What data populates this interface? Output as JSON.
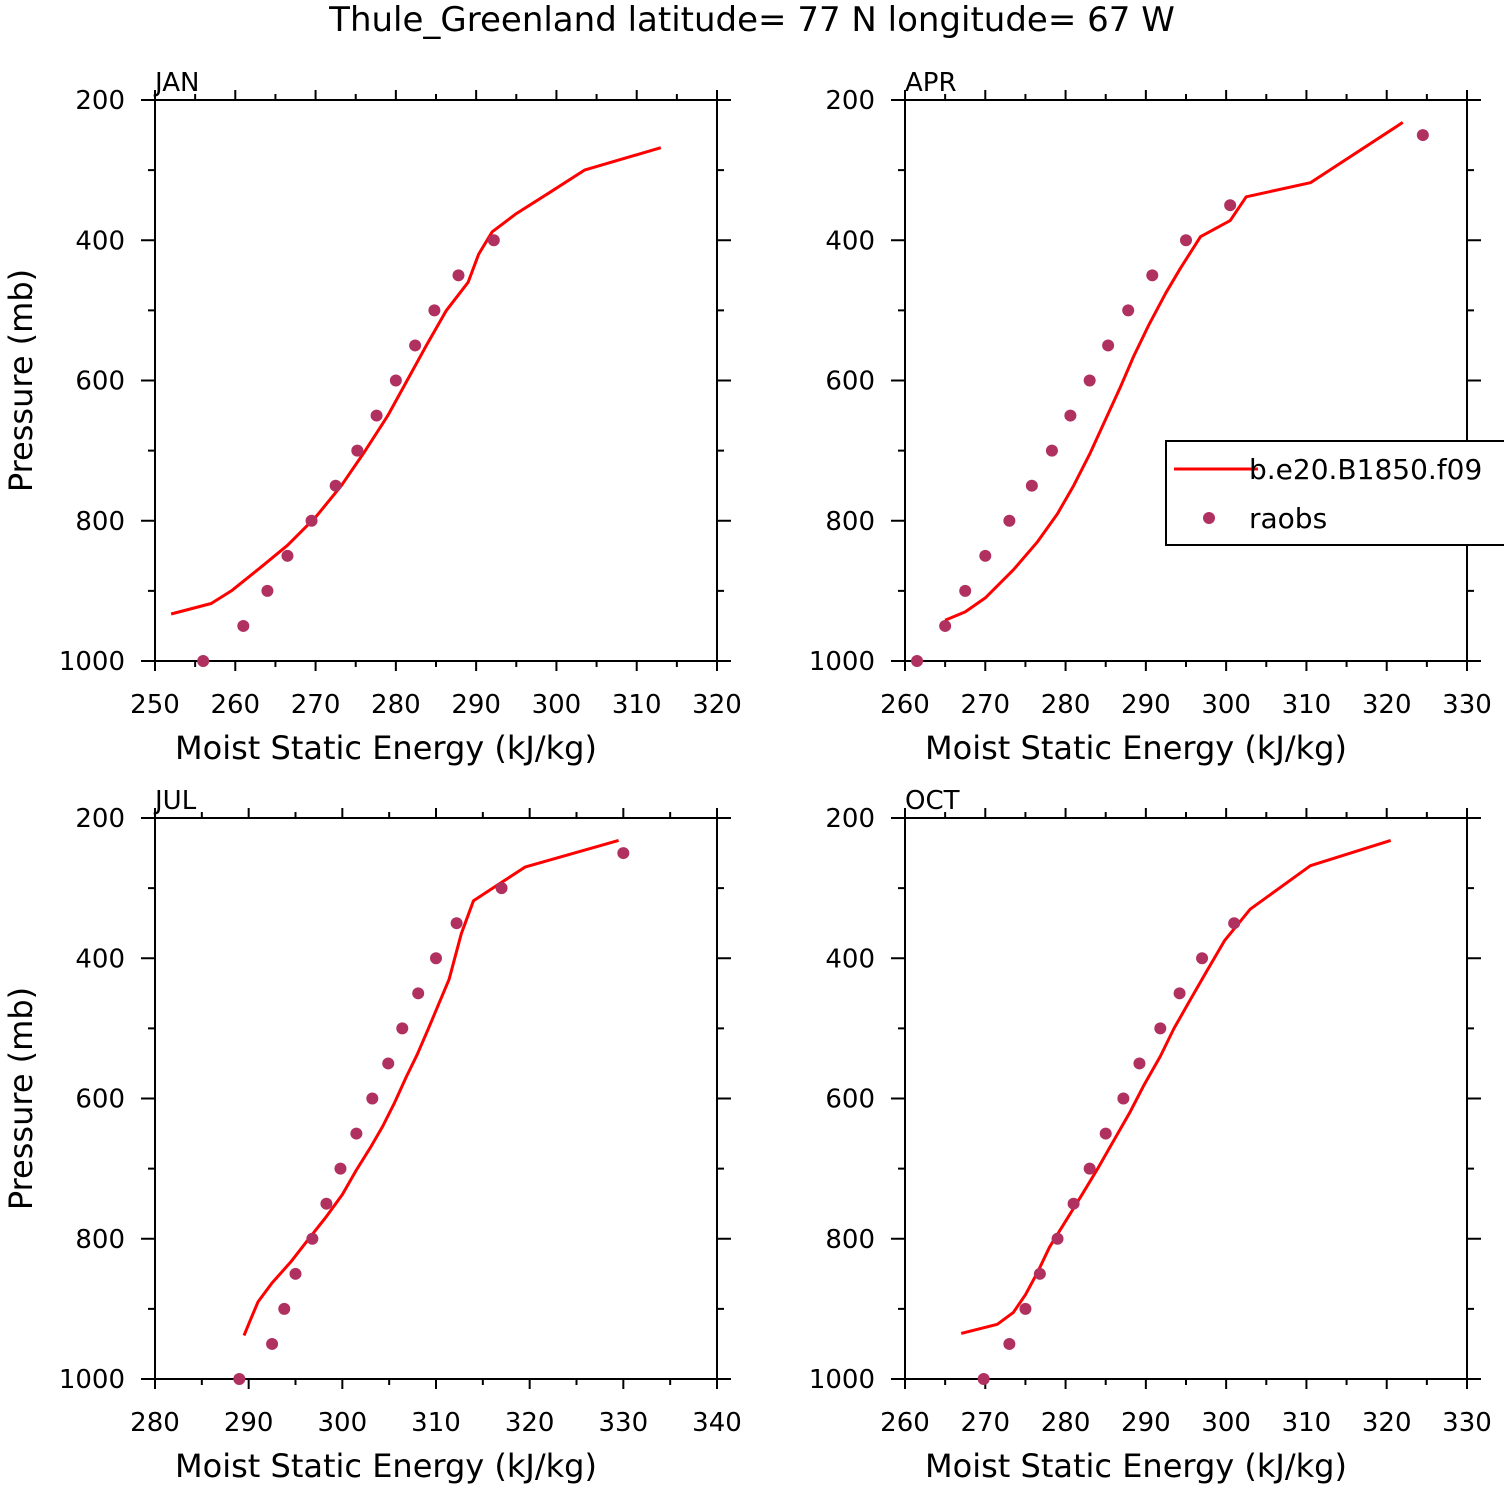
{
  "title": "Thule_Greenland  latitude= 77 N longitude= 67 W",
  "colors": {
    "model_line": "#ff0000",
    "raobs": "#b03060",
    "axis": "#000000"
  },
  "legend": {
    "entries": [
      {
        "label": "b.e20.B1850.f09",
        "kind": "line",
        "color": "#ff0000"
      },
      {
        "label": "raobs",
        "kind": "marker",
        "color": "#b03060"
      }
    ]
  },
  "chart_data": [
    {
      "type": "line",
      "panel": "JAN",
      "xlabel": "Moist Static Energy (kJ/kg)",
      "ylabel": "Pressure (mb)",
      "xlim": [
        250,
        320
      ],
      "ylim": [
        1000,
        200
      ],
      "xticks": [
        250,
        260,
        270,
        280,
        290,
        300,
        310,
        320
      ],
      "yticks": [
        200,
        400,
        600,
        800,
        1000
      ],
      "series": [
        {
          "name": "b.e20.B1850.f09",
          "kind": "line",
          "points": [
            [
              252,
              933
            ],
            [
              257,
              918
            ],
            [
              259.5,
              900
            ],
            [
              263,
              868
            ],
            [
              266.5,
              835
            ],
            [
              270,
              795
            ],
            [
              273.2,
              750
            ],
            [
              276.2,
              700
            ],
            [
              279,
              650
            ],
            [
              281.4,
              600
            ],
            [
              283.8,
              550
            ],
            [
              286.3,
              500
            ],
            [
              289,
              460
            ],
            [
              290.3,
              420
            ],
            [
              292,
              388
            ],
            [
              295,
              362
            ],
            [
              299,
              333
            ],
            [
              303.5,
              300
            ],
            [
              313,
              268
            ]
          ]
        },
        {
          "name": "raobs",
          "kind": "scatter",
          "points": [
            [
              256,
              1000
            ],
            [
              261,
              950
            ],
            [
              264,
              900
            ],
            [
              266.5,
              850
            ],
            [
              269.5,
              800
            ],
            [
              272.5,
              750
            ],
            [
              275.2,
              700
            ],
            [
              277.6,
              650
            ],
            [
              280,
              600
            ],
            [
              282.4,
              550
            ],
            [
              284.8,
              500
            ],
            [
              287.8,
              450
            ],
            [
              292.2,
              400
            ]
          ]
        }
      ]
    },
    {
      "type": "line",
      "panel": "APR",
      "xlabel": "Moist Static Energy (kJ/kg)",
      "ylabel": "",
      "xlim": [
        260,
        330
      ],
      "ylim": [
        1000,
        200
      ],
      "xticks": [
        260,
        270,
        280,
        290,
        300,
        310,
        320,
        330
      ],
      "yticks": [
        200,
        400,
        600,
        800,
        1000
      ],
      "series": [
        {
          "name": "b.e20.B1850.f09",
          "kind": "line",
          "points": [
            [
              265,
              942
            ],
            [
              267.5,
              930
            ],
            [
              270,
              910
            ],
            [
              273.5,
              870
            ],
            [
              276.5,
              830
            ],
            [
              279,
              790
            ],
            [
              281,
              750
            ],
            [
              283,
              705
            ],
            [
              285,
              655
            ],
            [
              286.8,
              610
            ],
            [
              288.5,
              565
            ],
            [
              290.4,
              520
            ],
            [
              292.5,
              475
            ],
            [
              294.3,
              440
            ],
            [
              296.8,
              395
            ],
            [
              300.5,
              372
            ],
            [
              302.5,
              338
            ],
            [
              310.5,
              318
            ],
            [
              322,
              232
            ]
          ]
        },
        {
          "name": "raobs",
          "kind": "scatter",
          "points": [
            [
              261.5,
              1000
            ],
            [
              265,
              950
            ],
            [
              267.5,
              900
            ],
            [
              270,
              850
            ],
            [
              273,
              800
            ],
            [
              275.8,
              750
            ],
            [
              278.3,
              700
            ],
            [
              280.6,
              650
            ],
            [
              283,
              600
            ],
            [
              285.3,
              550
            ],
            [
              287.8,
              500
            ],
            [
              290.8,
              450
            ],
            [
              295,
              400
            ],
            [
              300.5,
              350
            ],
            [
              324.5,
              250
            ]
          ]
        }
      ]
    },
    {
      "type": "line",
      "panel": "JUL",
      "xlabel": "Moist Static Energy (kJ/kg)",
      "ylabel": "Pressure (mb)",
      "xlim": [
        280,
        340
      ],
      "ylim": [
        1000,
        200
      ],
      "xticks": [
        280,
        290,
        300,
        310,
        320,
        330,
        340
      ],
      "yticks": [
        200,
        400,
        600,
        800,
        1000
      ],
      "series": [
        {
          "name": "b.e20.B1850.f09",
          "kind": "line",
          "points": [
            [
              289.5,
              938
            ],
            [
              290.3,
              912
            ],
            [
              291,
              890
            ],
            [
              292.5,
              863
            ],
            [
              294.5,
              833
            ],
            [
              296.3,
              802
            ],
            [
              298.2,
              770
            ],
            [
              300,
              737
            ],
            [
              301.5,
              702
            ],
            [
              303,
              670
            ],
            [
              304.3,
              640
            ],
            [
              305.5,
              608
            ],
            [
              306.8,
              570
            ],
            [
              308,
              537
            ],
            [
              309.2,
              500
            ],
            [
              310.3,
              465
            ],
            [
              311.4,
              430
            ],
            [
              312.7,
              365
            ],
            [
              314,
              318
            ],
            [
              319.5,
              270
            ],
            [
              329.5,
              232
            ]
          ]
        },
        {
          "name": "raobs",
          "kind": "scatter",
          "points": [
            [
              289,
              1000
            ],
            [
              292.5,
              950
            ],
            [
              293.8,
              900
            ],
            [
              295,
              850
            ],
            [
              296.8,
              800
            ],
            [
              298.3,
              750
            ],
            [
              299.8,
              700
            ],
            [
              301.5,
              650
            ],
            [
              303.2,
              600
            ],
            [
              304.9,
              550
            ],
            [
              306.4,
              500
            ],
            [
              308.1,
              450
            ],
            [
              310,
              400
            ],
            [
              312.2,
              350
            ],
            [
              317,
              300
            ],
            [
              330,
              250
            ]
          ]
        }
      ]
    },
    {
      "type": "line",
      "panel": "OCT",
      "xlabel": "Moist Static Energy (kJ/kg)",
      "ylabel": "",
      "xlim": [
        260,
        330
      ],
      "ylim": [
        1000,
        200
      ],
      "xticks": [
        260,
        270,
        280,
        290,
        300,
        310,
        320,
        330
      ],
      "yticks": [
        200,
        400,
        600,
        800,
        1000
      ],
      "series": [
        {
          "name": "b.e20.B1850.f09",
          "kind": "line",
          "points": [
            [
              267,
              935
            ],
            [
              271.5,
              922
            ],
            [
              273.5,
              905
            ],
            [
              275,
              880
            ],
            [
              276.5,
              848
            ],
            [
              278,
              812
            ],
            [
              280,
              775
            ],
            [
              282,
              738
            ],
            [
              284,
              700
            ],
            [
              286,
              660
            ],
            [
              288,
              620
            ],
            [
              289.8,
              580
            ],
            [
              291.8,
              540
            ],
            [
              293.5,
              500
            ],
            [
              295.5,
              460
            ],
            [
              297.5,
              420
            ],
            [
              299.8,
              375
            ],
            [
              303,
              330
            ],
            [
              310.5,
              268
            ],
            [
              320.5,
              232
            ]
          ]
        },
        {
          "name": "raobs",
          "kind": "scatter",
          "points": [
            [
              269.8,
              1000
            ],
            [
              273,
              950
            ],
            [
              275,
              900
            ],
            [
              276.8,
              850
            ],
            [
              279,
              800
            ],
            [
              281,
              750
            ],
            [
              283,
              700
            ],
            [
              285,
              650
            ],
            [
              287.2,
              600
            ],
            [
              289.2,
              550
            ],
            [
              291.8,
              500
            ],
            [
              294.2,
              450
            ],
            [
              297,
              400
            ],
            [
              301,
              350
            ]
          ]
        }
      ]
    }
  ]
}
